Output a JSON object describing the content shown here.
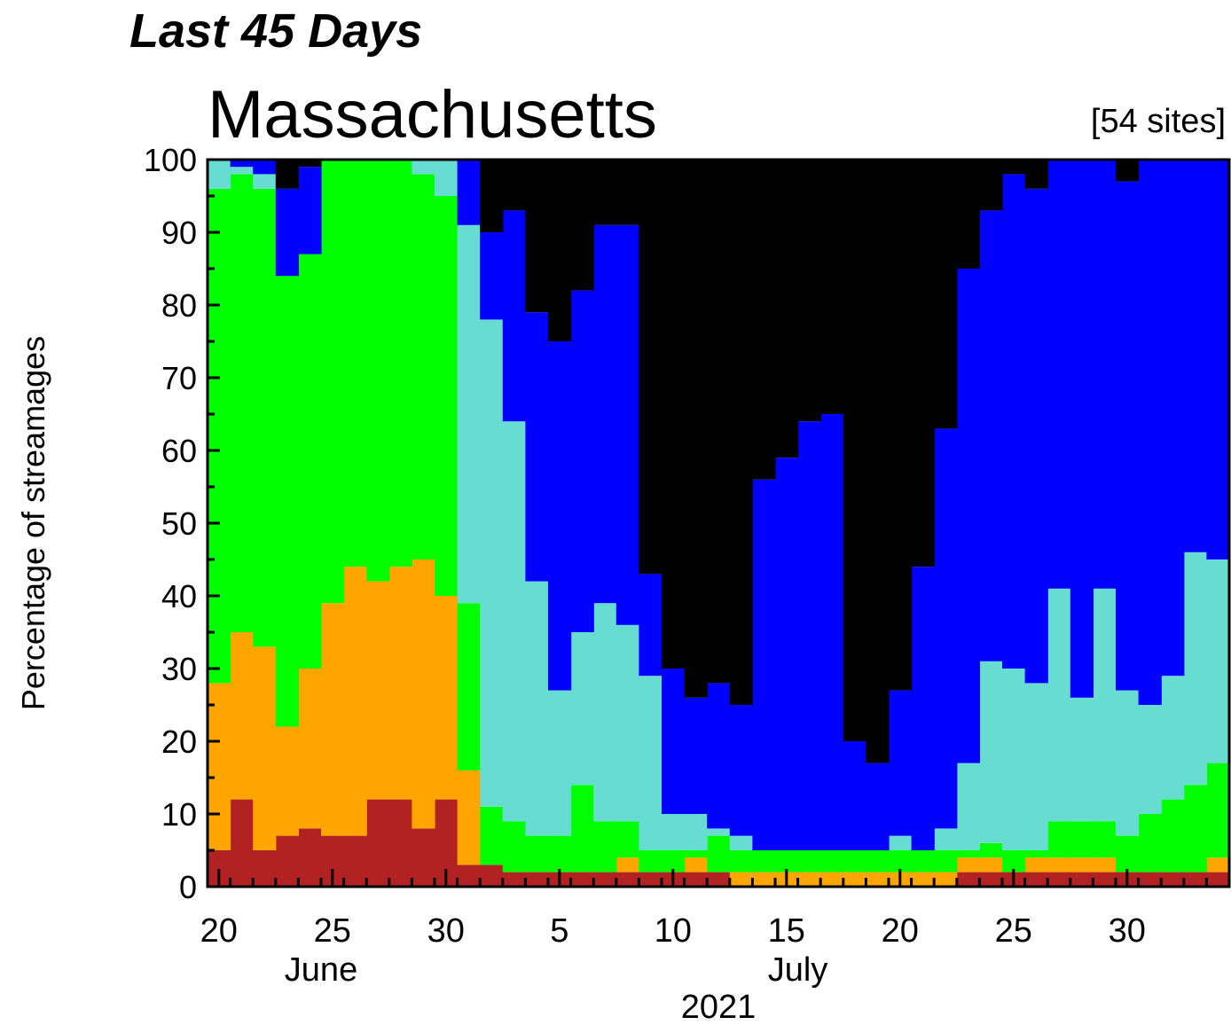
{
  "header": {
    "supertitle": "Last 45 Days",
    "title": "Massachusetts",
    "site_count": "[54 sites]"
  },
  "chart_data": {
    "type": "area",
    "title": "Massachusetts",
    "ylabel": "Percentage of streamages",
    "xlabel": "2021",
    "ylim": [
      0,
      100
    ],
    "yticks": [
      0,
      10,
      20,
      30,
      40,
      50,
      60,
      70,
      80,
      90,
      100
    ],
    "x_tick_labels": [
      "20",
      "25",
      "30",
      "5",
      "10",
      "15",
      "20",
      "25",
      "30"
    ],
    "x_tick_day_index": [
      0,
      5,
      10,
      15,
      20,
      25,
      30,
      35,
      40
    ],
    "month_labels": [
      {
        "label": "June",
        "day_index": 4.5
      },
      {
        "label": "July",
        "day_index": 25.5
      }
    ],
    "year_label": "2021",
    "dates": [
      "2021-06-20",
      "2021-06-21",
      "2021-06-22",
      "2021-06-23",
      "2021-06-24",
      "2021-06-25",
      "2021-06-26",
      "2021-06-27",
      "2021-06-28",
      "2021-06-29",
      "2021-06-30",
      "2021-07-01",
      "2021-07-02",
      "2021-07-03",
      "2021-07-04",
      "2021-07-05",
      "2021-07-06",
      "2021-07-07",
      "2021-07-08",
      "2021-07-09",
      "2021-07-10",
      "2021-07-11",
      "2021-07-12",
      "2021-07-13",
      "2021-07-14",
      "2021-07-15",
      "2021-07-16",
      "2021-07-17",
      "2021-07-18",
      "2021-07-19",
      "2021-07-20",
      "2021-07-21",
      "2021-07-22",
      "2021-07-23",
      "2021-07-24",
      "2021-07-25",
      "2021-07-26",
      "2021-07-27",
      "2021-07-28",
      "2021-07-29",
      "2021-07-30",
      "2021-07-31",
      "2021-08-01",
      "2021-08-02",
      "2021-08-03"
    ],
    "colors": [
      "#b22222",
      "#ffa500",
      "#00ff00",
      "#66ddd0",
      "#0000ff",
      "#000000"
    ],
    "series": [
      {
        "color": "#b22222",
        "cumulative": [
          5,
          12,
          5,
          7,
          8,
          7,
          7,
          12,
          12,
          8,
          12,
          3,
          3,
          2,
          2,
          2,
          2,
          2,
          2,
          2,
          2,
          2,
          2,
          0,
          0,
          0,
          0,
          0,
          0,
          0,
          0,
          0,
          0,
          2,
          2,
          2,
          2,
          2,
          2,
          2,
          2,
          2,
          2,
          2,
          2
        ]
      },
      {
        "color": "#ffa500",
        "cumulative": [
          28,
          35,
          33,
          22,
          30,
          39,
          44,
          42,
          44,
          45,
          40,
          16,
          3,
          2,
          2,
          2,
          2,
          2,
          4,
          2,
          2,
          4,
          2,
          2,
          2,
          2,
          2,
          2,
          2,
          2,
          2,
          2,
          2,
          4,
          4,
          2,
          4,
          4,
          4,
          4,
          2,
          2,
          2,
          2,
          4
        ]
      },
      {
        "color": "#00ff00",
        "cumulative": [
          96,
          98,
          96,
          96,
          96,
          100,
          100,
          100,
          100,
          98,
          95,
          39,
          11,
          9,
          7,
          7,
          14,
          9,
          9,
          5,
          5,
          5,
          7,
          5,
          5,
          5,
          7,
          5,
          5,
          5,
          5,
          5,
          5,
          5,
          6,
          5,
          5,
          9,
          9,
          9,
          7,
          10,
          12,
          14,
          17
        ]
      },
      {
        "color": "#66ddd0",
        "cumulative": [
          100,
          99,
          98,
          84,
          87,
          100,
          100,
          100,
          100,
          100,
          100,
          91,
          78,
          64,
          42,
          27,
          35,
          39,
          36,
          29,
          10,
          10,
          8,
          7,
          5,
          5,
          5,
          5,
          5,
          5,
          7,
          5,
          8,
          17,
          31,
          30,
          28,
          41,
          26,
          41,
          27,
          25,
          29,
          46,
          45
        ]
      },
      {
        "color": "#0000ff",
        "cumulative": [
          100,
          100,
          100,
          96,
          99,
          100,
          100,
          100,
          100,
          100,
          100,
          100,
          90,
          93,
          79,
          75,
          82,
          91,
          91,
          43,
          30,
          26,
          28,
          25,
          56,
          59,
          64,
          65,
          20,
          17,
          27,
          44,
          63,
          85,
          93,
          98,
          96,
          100,
          100,
          100,
          97,
          100,
          100,
          100,
          100
        ]
      },
      {
        "color": "#000000",
        "cumulative": [
          100,
          100,
          100,
          100,
          100,
          100,
          100,
          100,
          100,
          100,
          100,
          100,
          100,
          100,
          100,
          100,
          100,
          100,
          100,
          100,
          100,
          100,
          100,
          100,
          100,
          100,
          100,
          100,
          100,
          100,
          100,
          100,
          100,
          100,
          100,
          100,
          100,
          100,
          100,
          100,
          100,
          100,
          100,
          100,
          100
        ]
      }
    ]
  }
}
